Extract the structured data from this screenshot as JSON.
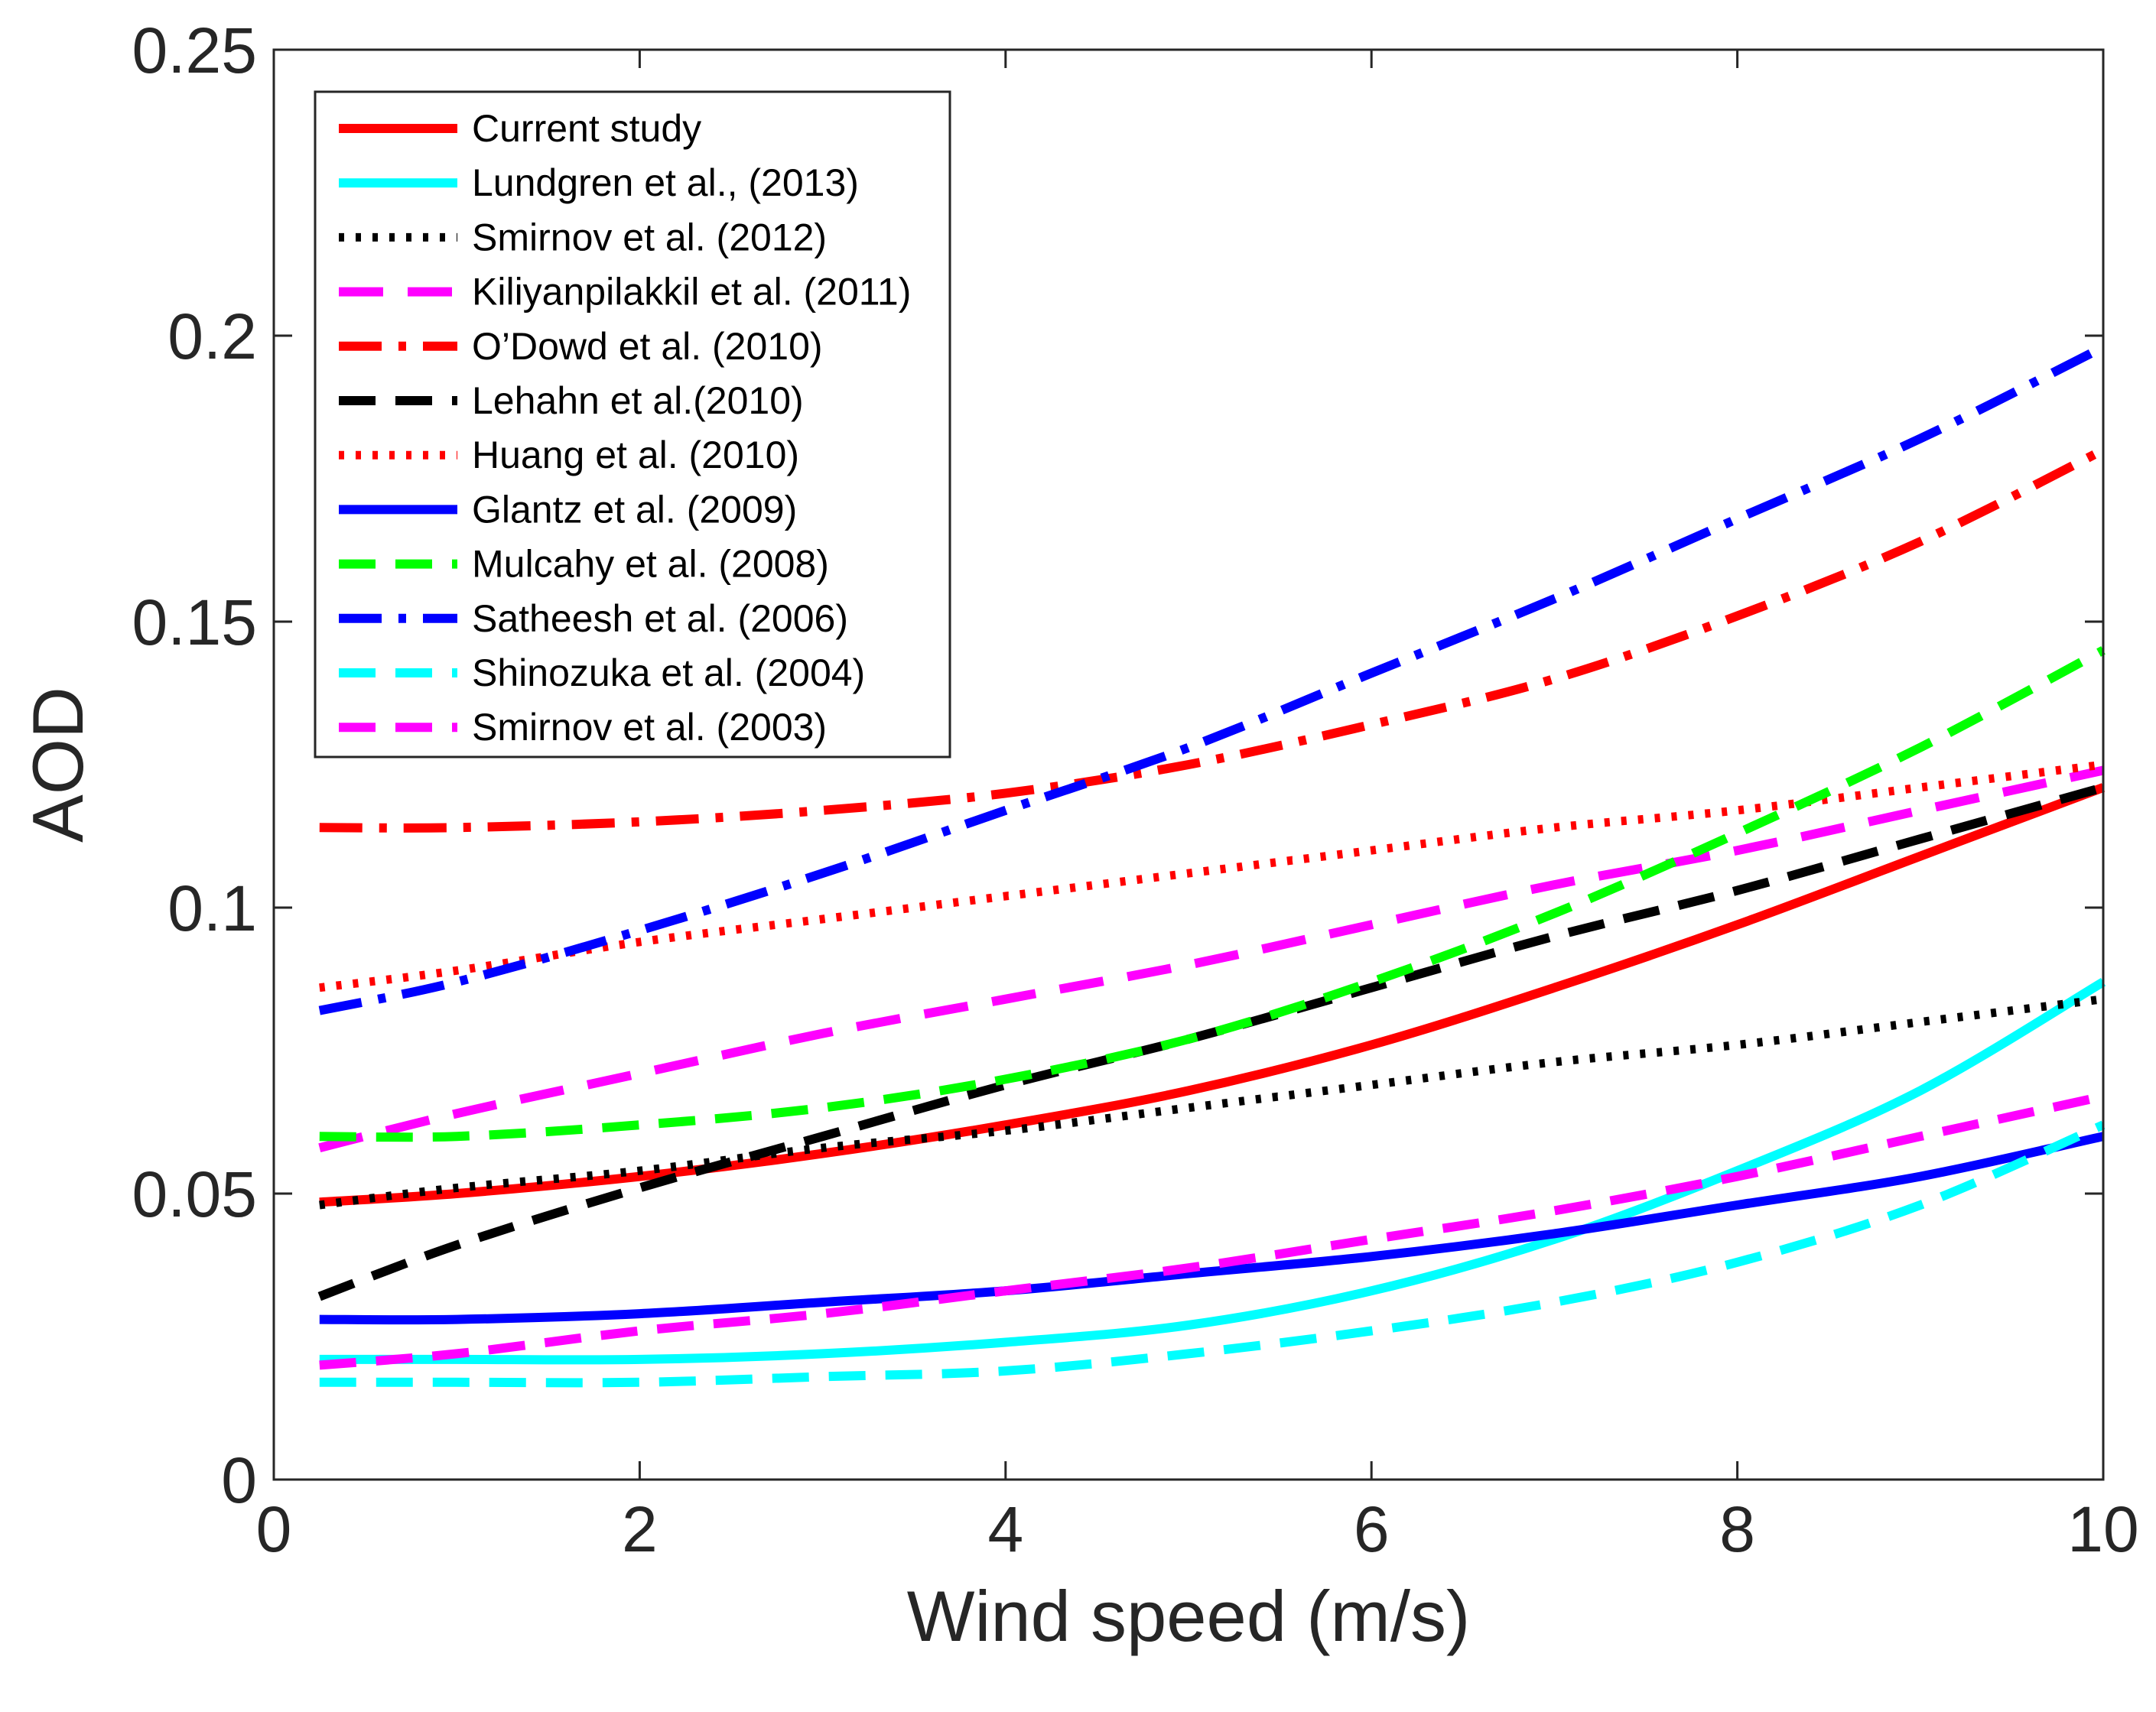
{
  "chart_data": {
    "type": "line",
    "title": "",
    "xlabel": "Wind speed (m/s)",
    "ylabel": "AOD",
    "xlim": [
      0,
      10
    ],
    "ylim": [
      0,
      0.25
    ],
    "xticks": [
      0,
      2,
      4,
      6,
      8,
      10
    ],
    "xtick_labels": [
      "0",
      "2",
      "4",
      "6",
      "8",
      "10"
    ],
    "yticks": [
      0,
      0.05,
      0.1,
      0.15,
      0.2,
      0.25
    ],
    "ytick_labels": [
      "0",
      "0.05",
      "0.1",
      "0.15",
      "0.2",
      "0.25"
    ],
    "grid": false,
    "legend_position": "top-left",
    "x": [
      0.25,
      1,
      2,
      3,
      4,
      5,
      6,
      7,
      8,
      9,
      10
    ],
    "series": [
      {
        "name": "Current study",
        "color": "#ff0000",
        "style": "solid",
        "values": [
          0.0485,
          0.05,
          0.053,
          0.057,
          0.062,
          0.068,
          0.076,
          0.086,
          0.097,
          0.109,
          0.121
        ]
      },
      {
        "name": "Lundgren et al., (2013)",
        "color": "#00ffff",
        "style": "solid",
        "values": [
          0.021,
          0.021,
          0.021,
          0.022,
          0.024,
          0.027,
          0.033,
          0.042,
          0.054,
          0.068,
          0.087
        ]
      },
      {
        "name": "Smirnov et al. (2012)",
        "color": "#000000",
        "style": "dotted",
        "values": [
          0.048,
          0.051,
          0.054,
          0.058,
          0.061,
          0.065,
          0.069,
          0.073,
          0.076,
          0.08,
          0.084
        ]
      },
      {
        "name": "Kiliyanpilakkil et al. (2011)",
        "color": "#ff00ff",
        "style": "longdash",
        "values": [
          0.058,
          0.064,
          0.071,
          0.078,
          0.084,
          0.09,
          0.097,
          0.104,
          0.11,
          0.117,
          0.124
        ]
      },
      {
        "name": "O’Dowd et al. (2010)",
        "color": "#ff0000",
        "style": "dashdot",
        "values": [
          0.114,
          0.114,
          0.115,
          0.117,
          0.12,
          0.125,
          0.132,
          0.14,
          0.151,
          0.164,
          0.18
        ]
      },
      {
        "name": "Lehahn et al.(2010)",
        "color": "#000000",
        "style": "dashed",
        "values": [
          0.032,
          0.041,
          0.051,
          0.06,
          0.069,
          0.077,
          0.086,
          0.095,
          0.103,
          0.112,
          0.121
        ]
      },
      {
        "name": "Huang et al. (2010)",
        "color": "#ff0000",
        "style": "dotted",
        "values": [
          0.086,
          0.089,
          0.094,
          0.098,
          0.102,
          0.106,
          0.11,
          0.114,
          0.117,
          0.121,
          0.125
        ]
      },
      {
        "name": "Glantz et al. (2009)",
        "color": "#0000ff",
        "style": "solid",
        "values": [
          0.028,
          0.028,
          0.029,
          0.031,
          0.033,
          0.036,
          0.039,
          0.043,
          0.048,
          0.053,
          0.06
        ]
      },
      {
        "name": "Mulcahy et al. (2008)",
        "color": "#00ff00",
        "style": "dashed",
        "values": [
          0.06,
          0.06,
          0.062,
          0.065,
          0.07,
          0.077,
          0.087,
          0.099,
          0.113,
          0.128,
          0.145
        ]
      },
      {
        "name": "Satheesh et al. (2006)",
        "color": "#0000ff",
        "style": "dashdot",
        "values": [
          0.082,
          0.087,
          0.096,
          0.106,
          0.117,
          0.128,
          0.141,
          0.154,
          0.168,
          0.182,
          0.198
        ]
      },
      {
        "name": "Shinozuka et al. (2004)",
        "color": "#00ffff",
        "style": "dashed",
        "values": [
          0.017,
          0.017,
          0.017,
          0.018,
          0.019,
          0.022,
          0.026,
          0.031,
          0.038,
          0.048,
          0.062
        ]
      },
      {
        "name": "Smirnov et al. (2003)",
        "color": "#ff00ff",
        "style": "dashed",
        "values": [
          0.02,
          0.022,
          0.026,
          0.029,
          0.033,
          0.037,
          0.042,
          0.047,
          0.053,
          0.06,
          0.067
        ]
      }
    ]
  }
}
